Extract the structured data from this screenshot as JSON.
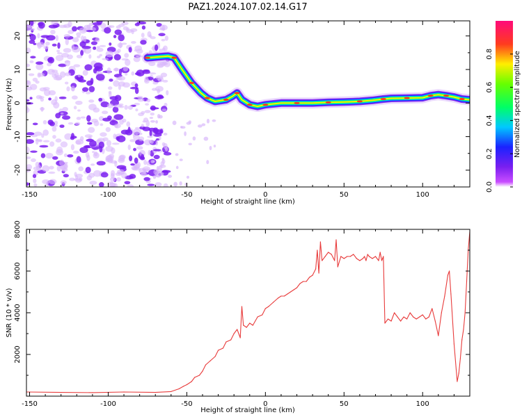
{
  "title": "PAZ1.2024.107.02.14.G17",
  "colors": {
    "line": "#e83a3a",
    "frame": "#000000",
    "blob": "#7a1ff0",
    "blob_light": "#d9b8fb"
  },
  "chart_data": [
    {
      "type": "heatmap",
      "xlabel": "Height of straight line (km)",
      "ylabel": "Frequency (Hz)",
      "xlim": [
        -152,
        130
      ],
      "ylim": [
        -25,
        24.5
      ],
      "x_ticks": [
        -150,
        -100,
        -50,
        0,
        50,
        100
      ],
      "y_ticks": [
        -20,
        -10,
        0,
        10,
        20
      ],
      "colorbar": {
        "label": "Normalized spectral amplitude",
        "range": [
          0,
          1
        ],
        "ticks": [
          "0.0",
          "0.2",
          "0.4",
          "0.6",
          "0.8"
        ],
        "colormap": "hsv"
      },
      "ridge": {
        "x": [
          -75,
          -62,
          -58,
          -53,
          -47,
          -41,
          -37,
          -32,
          -25,
          -21,
          -18,
          -15,
          -10,
          -5,
          0,
          10,
          20,
          30,
          40,
          50,
          60,
          68,
          75,
          80,
          90,
          100,
          105,
          110,
          115,
          120,
          125,
          130
        ],
        "y": [
          13.5,
          14,
          13.5,
          10,
          6,
          3,
          1.5,
          0.5,
          1,
          2,
          3,
          1,
          -0.5,
          -1,
          -0.5,
          0,
          0,
          0,
          0.2,
          0.3,
          0.5,
          0.8,
          1.2,
          1.4,
          1.5,
          1.6,
          2.2,
          2.5,
          2.2,
          1.8,
          1.2,
          1.0
        ]
      }
    },
    {
      "type": "line",
      "xlabel": "Height of straight line (km)",
      "ylabel": "SNR (10 * v/v)",
      "xlim": [
        -152,
        130
      ],
      "ylim": [
        0,
        8000
      ],
      "x_ticks": [
        -150,
        -100,
        -50,
        0,
        50,
        100
      ],
      "y_ticks": [
        2000,
        4000,
        6000,
        8000
      ],
      "series": [
        {
          "x": [
            -152,
            -130,
            -110,
            -90,
            -70,
            -60,
            -55,
            -52,
            -50,
            -47,
            -45,
            -42,
            -40,
            -38,
            -35,
            -32,
            -30,
            -27,
            -25,
            -22,
            -20,
            -18,
            -16,
            -15,
            -14,
            -12,
            -10,
            -8,
            -5,
            -2,
            0,
            2,
            5,
            8,
            10,
            12,
            14,
            16,
            18,
            20,
            22,
            24,
            26,
            28,
            30,
            32,
            33,
            34,
            35,
            36,
            38,
            40,
            42,
            44,
            45,
            46,
            48,
            50,
            52,
            54,
            56,
            58,
            60,
            62,
            63,
            64,
            65,
            66,
            68,
            70,
            72,
            73,
            74,
            75,
            76,
            78,
            80,
            82,
            84,
            86,
            88,
            90,
            92,
            94,
            96,
            98,
            100,
            102,
            104,
            106,
            108,
            110,
            112,
            114,
            116,
            117,
            118,
            120,
            122,
            123,
            124,
            125,
            126,
            127,
            128,
            129,
            130
          ],
          "y": [
            200,
            180,
            170,
            200,
            180,
            220,
            350,
            480,
            550,
            700,
            900,
            1000,
            1200,
            1500,
            1700,
            1900,
            2200,
            2300,
            2600,
            2700,
            3000,
            3200,
            2800,
            4300,
            3400,
            3300,
            3500,
            3400,
            3800,
            3900,
            4200,
            4300,
            4500,
            4700,
            4800,
            4800,
            4900,
            5000,
            5100,
            5200,
            5400,
            5500,
            5500,
            5700,
            5800,
            6100,
            7000,
            5900,
            7400,
            6500,
            6700,
            6900,
            6800,
            6500,
            7500,
            6200,
            6700,
            6600,
            6700,
            6700,
            6800,
            6600,
            6500,
            6600,
            6700,
            6500,
            6800,
            6700,
            6600,
            6700,
            6500,
            6900,
            6500,
            6700,
            3500,
            3700,
            3600,
            4000,
            3800,
            3600,
            3800,
            3700,
            4000,
            3800,
            3700,
            3800,
            3900,
            3700,
            3800,
            4200,
            3600,
            2900,
            4000,
            4800,
            5800,
            6000,
            4900,
            2500,
            700,
            1100,
            1800,
            2700,
            3200,
            4000,
            5500,
            7000,
            7900
          ]
        }
      ]
    }
  ]
}
